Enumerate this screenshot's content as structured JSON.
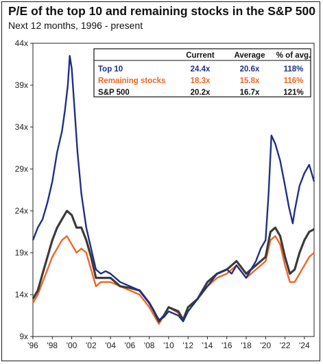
{
  "chart_data": {
    "type": "line",
    "title": "P/E of the top 10 and remaining stocks in the S&P 500",
    "subtitle": "Next 12 months, 1996 - present",
    "xlabel": "",
    "ylabel": "",
    "xlim": [
      1996,
      2025
    ],
    "ylim": [
      9,
      44
    ],
    "yticks": [
      "9x",
      "14x",
      "19x",
      "24x",
      "29x",
      "34x",
      "39x",
      "44x"
    ],
    "ytick_values": [
      9,
      14,
      19,
      24,
      29,
      34,
      39,
      44
    ],
    "xticks": [
      "'96",
      "'98",
      "'00",
      "'02",
      "'04",
      "'06",
      "'08",
      "'10",
      "'12",
      "'14",
      "'16",
      "'18",
      "'20",
      "'22",
      "'24"
    ],
    "xtick_values": [
      1996,
      1998,
      2000,
      2002,
      2004,
      2006,
      2008,
      2010,
      2012,
      2014,
      2016,
      2018,
      2020,
      2022,
      2024
    ],
    "grid": "none",
    "colors": {
      "top10": "#1f2f86",
      "remaining": "#f26522",
      "sp500": "#3b3b3b"
    },
    "series": [
      {
        "name": "Top 10",
        "color": "#1f2f86",
        "x": [
          1996.0,
          1996.5,
          1997.0,
          1997.5,
          1998.0,
          1998.5,
          1999.0,
          1999.3,
          1999.6,
          1999.8,
          2000.0,
          2000.3,
          2000.6,
          2001.0,
          2001.5,
          2002.0,
          2002.5,
          2003.0,
          2003.5,
          2004.0,
          2005.0,
          2006.0,
          2007.0,
          2008.0,
          2008.5,
          2009.0,
          2009.5,
          2010.0,
          2011.0,
          2011.5,
          2012.0,
          2013.0,
          2014.0,
          2015.0,
          2016.0,
          2016.5,
          2017.0,
          2018.0,
          2019.0,
          2019.5,
          2020.0,
          2020.3,
          2020.6,
          2021.0,
          2021.5,
          2022.0,
          2022.4,
          2022.8,
          2023.0,
          2023.5,
          2024.0,
          2024.5,
          2025.0
        ],
        "values": [
          20.5,
          22.0,
          23.0,
          25.0,
          27.5,
          31.0,
          33.5,
          36.0,
          39.0,
          42.5,
          41.0,
          36.0,
          31.0,
          26.0,
          22.0,
          19.5,
          17.0,
          16.5,
          16.8,
          16.5,
          15.5,
          15.0,
          14.5,
          13.0,
          12.0,
          11.0,
          11.3,
          12.0,
          11.5,
          10.8,
          12.0,
          13.5,
          15.0,
          16.5,
          17.0,
          16.5,
          17.5,
          16.0,
          18.0,
          19.5,
          20.5,
          26.0,
          33.0,
          32.0,
          30.0,
          27.0,
          24.5,
          22.5,
          24.0,
          27.0,
          28.5,
          29.5,
          27.5
        ]
      },
      {
        "name": "Remaining stocks",
        "color": "#f26522",
        "x": [
          1996.0,
          1996.5,
          1997.0,
          1997.5,
          1998.0,
          1998.5,
          1999.0,
          1999.5,
          2000.0,
          2000.5,
          2001.0,
          2001.5,
          2002.0,
          2002.5,
          2003.0,
          2004.0,
          2005.0,
          2006.0,
          2007.0,
          2008.0,
          2008.5,
          2009.0,
          2009.5,
          2010.0,
          2011.0,
          2011.5,
          2012.0,
          2013.0,
          2014.0,
          2015.0,
          2016.0,
          2017.0,
          2018.0,
          2019.0,
          2020.0,
          2020.5,
          2021.0,
          2021.5,
          2022.0,
          2022.5,
          2023.0,
          2023.5,
          2024.0,
          2024.5,
          2025.0
        ],
        "values": [
          13.0,
          14.0,
          15.5,
          17.0,
          18.5,
          19.5,
          20.5,
          21.0,
          20.0,
          19.0,
          19.5,
          19.0,
          17.0,
          15.0,
          15.5,
          15.5,
          15.0,
          14.5,
          14.0,
          12.5,
          11.5,
          10.5,
          11.5,
          12.5,
          11.8,
          11.0,
          12.5,
          13.5,
          15.0,
          16.0,
          16.5,
          17.5,
          16.0,
          17.0,
          18.0,
          20.5,
          21.0,
          20.0,
          17.5,
          15.5,
          15.5,
          16.5,
          17.5,
          18.5,
          19.0
        ]
      },
      {
        "name": "S&P 500",
        "color": "#3b3b3b",
        "x": [
          1996.0,
          1996.5,
          1997.0,
          1997.5,
          1998.0,
          1998.5,
          1999.0,
          1999.5,
          2000.0,
          2000.5,
          2001.0,
          2001.5,
          2002.0,
          2002.5,
          2003.0,
          2004.0,
          2005.0,
          2006.0,
          2007.0,
          2008.0,
          2008.5,
          2009.0,
          2009.5,
          2010.0,
          2011.0,
          2011.5,
          2012.0,
          2013.0,
          2014.0,
          2015.0,
          2016.0,
          2017.0,
          2018.0,
          2019.0,
          2020.0,
          2020.5,
          2021.0,
          2021.5,
          2022.0,
          2022.5,
          2023.0,
          2023.5,
          2024.0,
          2024.5,
          2025.0
        ],
        "values": [
          13.5,
          14.5,
          16.5,
          18.5,
          20.5,
          22.0,
          23.0,
          24.0,
          23.5,
          22.0,
          22.0,
          20.5,
          18.5,
          16.0,
          16.0,
          16.0,
          15.0,
          14.8,
          14.5,
          13.0,
          12.0,
          10.8,
          11.5,
          12.5,
          12.0,
          11.0,
          12.5,
          13.5,
          15.5,
          16.5,
          17.0,
          18.0,
          16.5,
          17.5,
          18.5,
          21.5,
          22.0,
          21.0,
          18.5,
          16.5,
          17.0,
          19.0,
          20.5,
          21.5,
          21.8
        ]
      }
    ],
    "table": {
      "columns": [
        "",
        "Current",
        "Average",
        "% of avg."
      ],
      "rows": [
        {
          "label": "Top 10",
          "current": "24.4x",
          "average": "20.6x",
          "pct": "118%",
          "color": "#1f2f86"
        },
        {
          "label": "Remaining stocks",
          "current": "18.3x",
          "average": "15.8x",
          "pct": "116%",
          "color": "#f26522"
        },
        {
          "label": "S&P 500",
          "current": "20.2x",
          "average": "16.7x",
          "pct": "121%",
          "color": "#111111"
        }
      ]
    }
  }
}
